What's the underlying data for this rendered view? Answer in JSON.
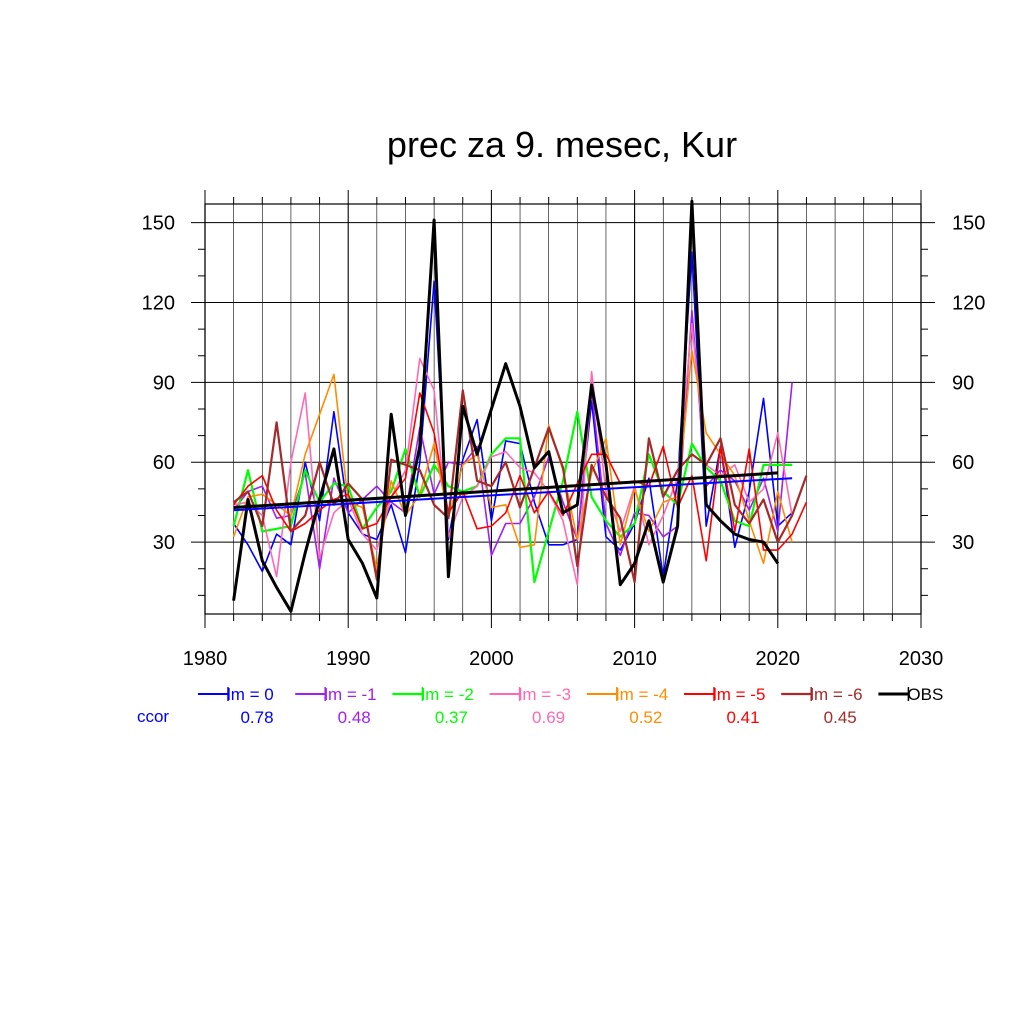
{
  "chart_data": {
    "type": "line",
    "title": "prec za 9. mesec, Kur",
    "xlabel": "",
    "ylabel": "",
    "xlim": [
      1980,
      2030
    ],
    "ylim": [
      3,
      157
    ],
    "xticks": [
      "1980",
      "1990",
      "2000",
      "2010",
      "2020",
      "2030"
    ],
    "yticks": [
      "30",
      "60",
      "90",
      "120",
      "150"
    ],
    "grid": true,
    "legend_position": "bottom",
    "ccor_label": "ccor",
    "series": [
      {
        "name": "lm = 0",
        "color": "#0000ff",
        "width": 1.6,
        "ccor": "0.78",
        "x": [
          1982,
          1983,
          1984,
          1985,
          1986,
          1987,
          1988,
          1989,
          1990,
          1991,
          1992,
          1993,
          1994,
          1995,
          1996,
          1997,
          1998,
          1999,
          2000,
          2001,
          2002,
          2003,
          2004,
          2005,
          2006,
          2007,
          2008,
          2009,
          2010,
          2011,
          2012,
          2013,
          2014,
          2015,
          2016,
          2017,
          2018,
          2019,
          2020,
          2021
        ],
        "y": [
          37,
          29,
          19,
          33,
          29,
          60,
          38,
          79,
          41,
          33,
          31,
          44,
          26,
          60,
          128,
          31,
          61,
          76,
          38,
          68,
          67,
          45,
          29,
          29,
          31,
          83,
          32,
          27,
          37,
          54,
          17,
          53,
          139,
          36,
          66,
          28,
          49,
          84,
          36,
          41
        ]
      },
      {
        "name": "lm = -1",
        "color": "#a020f0",
        "width": 1.6,
        "ccor": "0.48",
        "x": [
          1982,
          1983,
          1984,
          1985,
          1986,
          1987,
          1988,
          1989,
          1990,
          1991,
          1992,
          1993,
          1994,
          1995,
          1996,
          1997,
          1998,
          1999,
          2000,
          2001,
          2002,
          2003,
          2004,
          2005,
          2006,
          2007,
          2008,
          2009,
          2010,
          2011,
          2012,
          2013,
          2014,
          2015,
          2016,
          2017,
          2018,
          2019,
          2020,
          2021
        ],
        "y": [
          42,
          49,
          51,
          39,
          40,
          56,
          20,
          54,
          41,
          46,
          51,
          45,
          41,
          73,
          48,
          60,
          59,
          66,
          25,
          37,
          37,
          47,
          62,
          45,
          31,
          87,
          37,
          25,
          41,
          40,
          32,
          36,
          117,
          51,
          57,
          53,
          42,
          54,
          34,
          90
        ]
      },
      {
        "name": "lm = -2",
        "color": "#00ff00",
        "width": 2.2,
        "ccor": "0.37",
        "x": [
          1982,
          1983,
          1984,
          1985,
          1986,
          1987,
          1988,
          1989,
          1990,
          1991,
          1992,
          1993,
          1994,
          1995,
          1996,
          1997,
          1998,
          1999,
          2000,
          2001,
          2002,
          2003,
          2004,
          2005,
          2006,
          2007,
          2008,
          2009,
          2010,
          2011,
          2012,
          2013,
          2014,
          2015,
          2016,
          2017,
          2018,
          2019,
          2020,
          2021
        ],
        "y": [
          36,
          57,
          34,
          35,
          36,
          57,
          45,
          52,
          51,
          35,
          43,
          49,
          65,
          47,
          59,
          51,
          49,
          51,
          63,
          69,
          69,
          15,
          34,
          53,
          79,
          47,
          38,
          32,
          37,
          63,
          49,
          44,
          67,
          58,
          53,
          38,
          36,
          59,
          59,
          59
        ]
      },
      {
        "name": "lm = -3",
        "color": "#ff69b4",
        "width": 1.6,
        "ccor": "0.69",
        "x": [
          1982,
          1983,
          1984,
          1985,
          1986,
          1987,
          1988,
          1989,
          1990,
          1991,
          1992,
          1993,
          1994,
          1995,
          1996,
          1997,
          1998,
          1999,
          2000,
          2001,
          2002,
          2003,
          2004,
          2005,
          2006,
          2007,
          2008,
          2009,
          2010,
          2011,
          2012,
          2013,
          2014,
          2015,
          2016,
          2017,
          2018,
          2019,
          2020,
          2021
        ],
        "y": [
          44,
          45,
          40,
          17,
          60,
          86,
          24,
          41,
          46,
          33,
          27,
          47,
          57,
          99,
          87,
          32,
          47,
          51,
          62,
          64,
          58,
          56,
          49,
          38,
          14,
          94,
          49,
          34,
          51,
          29,
          40,
          54,
          112,
          59,
          55,
          59,
          45,
          50,
          71,
          40
        ]
      },
      {
        "name": "lm = -4",
        "color": "#ff8c00",
        "width": 1.6,
        "ccor": "0.52",
        "x": [
          1982,
          1983,
          1984,
          1985,
          1986,
          1987,
          1988,
          1989,
          1990,
          1991,
          1992,
          1993,
          1994,
          1995,
          1996,
          1997,
          1998,
          1999,
          2000,
          2001,
          2002,
          2003,
          2004,
          2005,
          2006,
          2007,
          2008,
          2009,
          2010,
          2011,
          2012,
          2013,
          2014,
          2015,
          2016,
          2017,
          2018,
          2019,
          2020,
          2021
        ],
        "y": [
          32,
          47,
          48,
          44,
          40,
          63,
          78,
          93,
          45,
          43,
          20,
          53,
          40,
          48,
          67,
          39,
          59,
          63,
          43,
          44,
          28,
          29,
          74,
          57,
          31,
          56,
          69,
          29,
          50,
          34,
          45,
          47,
          102,
          71,
          63,
          55,
          38,
          22,
          49,
          30
        ]
      },
      {
        "name": "lm = -5",
        "color": "#ff0000",
        "width": 1.6,
        "ccor": "0.41",
        "x": [
          1982,
          1983,
          1984,
          1985,
          1986,
          1987,
          1988,
          1989,
          1990,
          1991,
          1992,
          1993,
          1994,
          1995,
          1996,
          1997,
          1998,
          1999,
          2000,
          2001,
          2002,
          2003,
          2004,
          2005,
          2006,
          2007,
          2008,
          2009,
          2010,
          2011,
          2012,
          2013,
          2014,
          2015,
          2016,
          2017,
          2018,
          2019,
          2020,
          2021,
          2022
        ],
        "y": [
          44,
          51,
          55,
          42,
          34,
          37,
          42,
          46,
          48,
          35,
          37,
          47,
          54,
          86,
          71,
          41,
          49,
          35,
          36,
          41,
          55,
          41,
          49,
          40,
          52,
          63,
          63,
          52,
          53,
          51,
          66,
          43,
          55,
          23,
          66,
          34,
          65,
          27,
          27,
          33,
          45
        ]
      },
      {
        "name": "lm = -6",
        "color": "#a52a2a",
        "width": 2.2,
        "ccor": "0.45",
        "x": [
          1982,
          1983,
          1984,
          1985,
          1986,
          1987,
          1988,
          1989,
          1990,
          1991,
          1992,
          1993,
          1994,
          1995,
          1996,
          1997,
          1998,
          1999,
          2000,
          2001,
          2002,
          2003,
          2004,
          2005,
          2006,
          2007,
          2008,
          2009,
          2010,
          2011,
          2012,
          2013,
          2014,
          2015,
          2016,
          2017,
          2018,
          2019,
          2020,
          2021,
          2022
        ],
        "y": [
          45,
          49,
          36,
          75,
          34,
          40,
          60,
          44,
          52,
          46,
          16,
          61,
          59,
          57,
          44,
          39,
          87,
          53,
          51,
          60,
          43,
          58,
          73,
          58,
          21,
          59,
          47,
          39,
          15,
          69,
          47,
          57,
          63,
          59,
          69,
          44,
          37,
          46,
          30,
          40,
          55
        ]
      },
      {
        "name": "OBS",
        "color": "#000000",
        "width": 3.0,
        "ccor": "",
        "x": [
          1982,
          1983,
          1984,
          1985,
          1986,
          1987,
          1988,
          1989,
          1990,
          1991,
          1992,
          1993,
          1994,
          1995,
          1996,
          1997,
          1998,
          1999,
          2000,
          2001,
          2002,
          2003,
          2004,
          2005,
          2006,
          2007,
          2008,
          2009,
          2010,
          2011,
          2012,
          2013,
          2014,
          2015,
          2016,
          2017,
          2018,
          2019,
          2020
        ],
        "y": [
          8,
          46,
          23,
          13,
          4,
          26,
          46,
          65,
          31,
          22,
          9,
          78,
          40,
          66,
          151,
          17,
          81,
          63,
          80,
          97,
          81,
          58,
          64,
          41,
          44,
          89,
          59,
          14,
          22,
          38,
          15,
          36,
          158,
          44,
          38,
          33,
          31,
          30,
          22
        ]
      }
    ],
    "trend_lines": [
      {
        "name": "lm = 0 trend",
        "color": "#0000ff",
        "width": 2.0,
        "x": [
          1982,
          2021
        ],
        "y": [
          42,
          54
        ]
      },
      {
        "name": "OBS trend",
        "color": "#000000",
        "width": 3.0,
        "x": [
          1982,
          2020
        ],
        "y": [
          43,
          56
        ]
      }
    ]
  }
}
